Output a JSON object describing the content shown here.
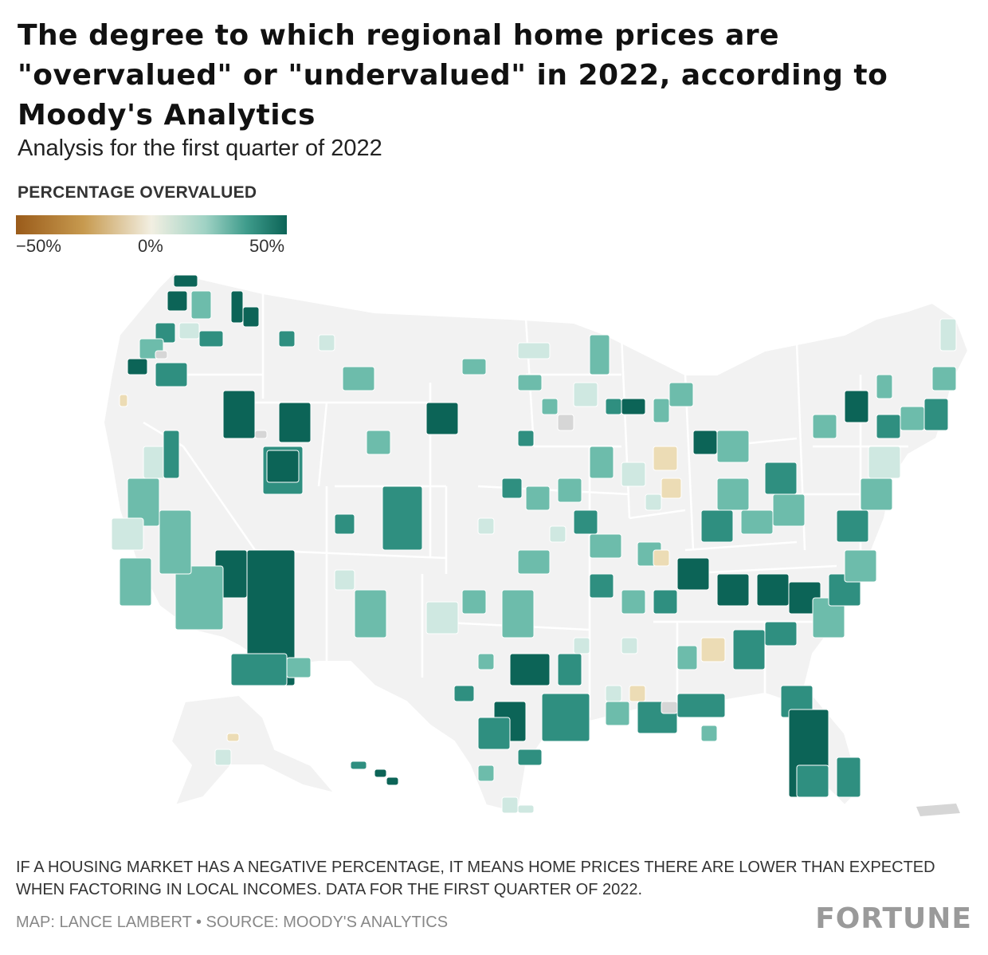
{
  "title": "The degree to which regional home prices are \"overvalued\" or \"undervalued\" in 2022, according to Moody's Analytics",
  "subtitle": "Analysis for the first quarter of 2022",
  "legend": {
    "title": "PERCENTAGE OVERVALUED",
    "ticks": [
      "−50%",
      "0%",
      "50%"
    ],
    "colors": [
      "#9a5b1a",
      "#c79a4f",
      "#f2efe2",
      "#9fd2c4",
      "#3f9c8c",
      "#0c6457"
    ]
  },
  "note": "IF A HOUSING MARKET HAS A NEGATIVE PERCENTAGE, IT MEANS HOME PRICES THERE ARE LOWER THAN EXPECTED WHEN FACTORING IN LOCAL INCOMES. DATA FOR THE FIRST QUARTER OF 2022.",
  "credit": "MAP: LANCE LAMBERT • SOURCE: MOODY'S ANALYTICS",
  "brand": "FORTUNE",
  "map_colors": {
    "land": "#f2f2f2",
    "border": "#ffffff",
    "no_data": "#d6d6d6",
    "light": "#cfe8e1",
    "mid": "#6dbcab",
    "strong": "#2f8f80",
    "dark": "#0c6457",
    "under": "#ecdcb5"
  }
}
